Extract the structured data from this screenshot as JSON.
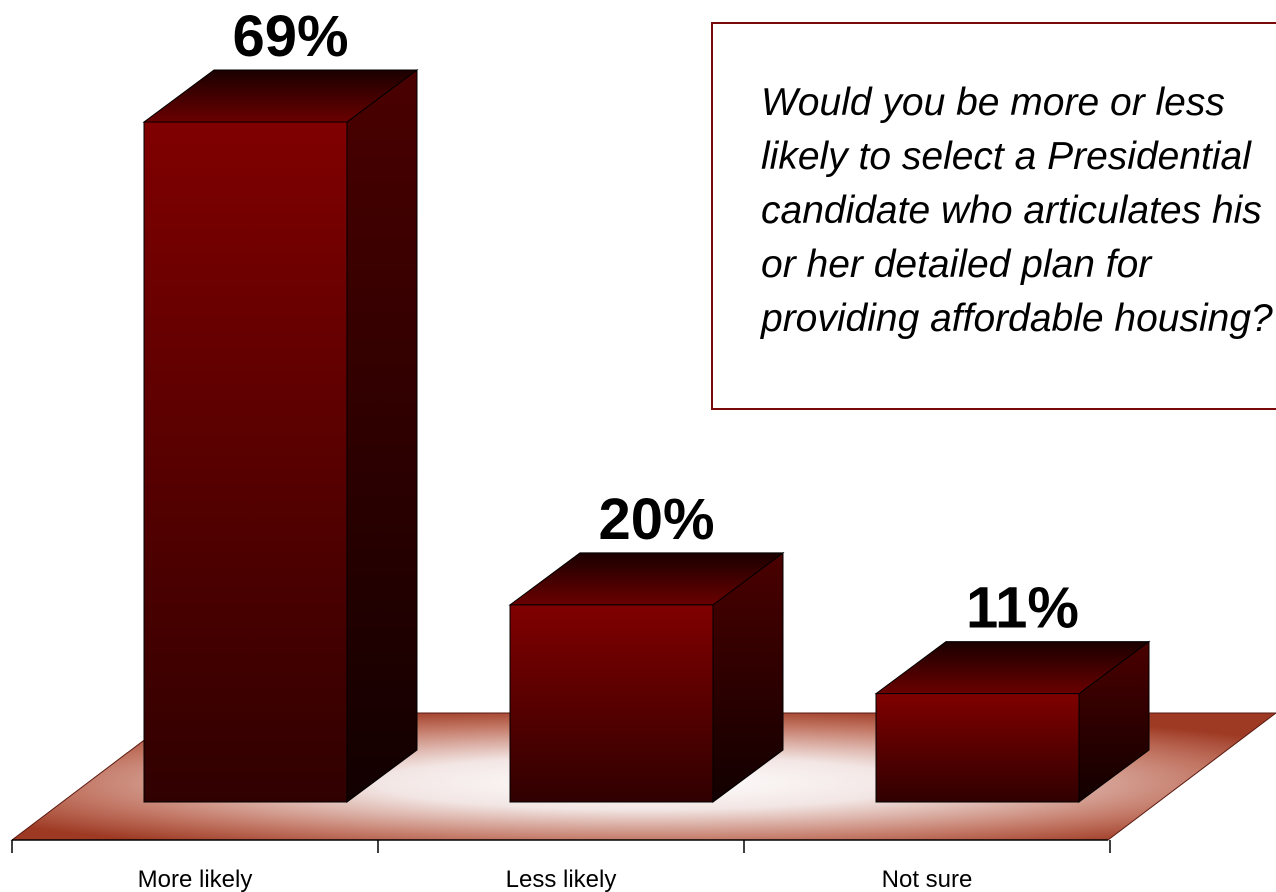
{
  "question": {
    "text": "Would you be more or less\nlikely to select a Presidential\ncandidate who articulates his\nor her detailed plan for\nproviding affordable housing?"
  },
  "colors": {
    "bar_front": "#7f0000",
    "bar_side": "#3a0000",
    "bar_top": "#2a0000",
    "floor": "#a8442e",
    "question_border": "#7a0a0a"
  },
  "chart_data": {
    "type": "bar",
    "categories": [
      "More likely",
      "Less likely",
      "Not sure"
    ],
    "values": [
      69,
      20,
      11
    ],
    "value_labels": [
      "69%",
      "20%",
      "11%"
    ],
    "title": "",
    "xlabel": "",
    "ylabel": "",
    "ylim": [
      0,
      69
    ],
    "grid": false,
    "legend": "none"
  }
}
